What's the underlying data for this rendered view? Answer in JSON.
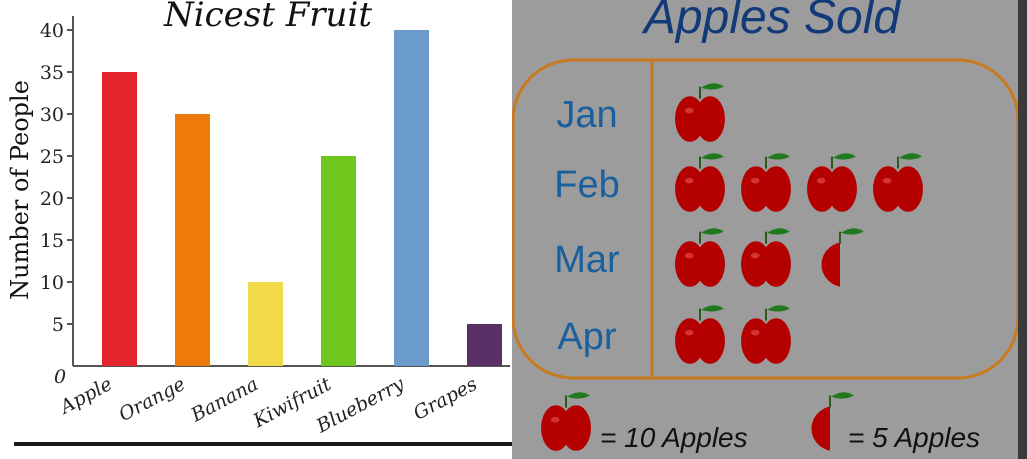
{
  "chart_data": [
    {
      "type": "bar",
      "title": "Nicest Fruit",
      "ylabel": "Number of People",
      "categories": [
        "Apple",
        "Orange",
        "Banana",
        "Kiwifruit",
        "Blueberry",
        "Grapes"
      ],
      "values": [
        35,
        30,
        10,
        25,
        40,
        5
      ],
      "colors": [
        "#e3242b",
        "#ed7a0a",
        "#f0da4a",
        "#6fc61c",
        "#6a9bca",
        "#5a2f66"
      ],
      "yticks": [
        "0",
        "5",
        "10",
        "15",
        "20",
        "25",
        "30",
        "35",
        "40"
      ],
      "ylim": [
        0,
        40
      ],
      "grid": false
    },
    {
      "type": "pictograph",
      "title": "Apples Sold",
      "categories": [
        "Jan",
        "Feb",
        "Mar",
        "Apr"
      ],
      "values": [
        10,
        40,
        25,
        20
      ],
      "icon": "apple-icon",
      "legend": [
        {
          "icon": "apple-icon",
          "label": "= 10 Apples",
          "value": 10
        },
        {
          "icon": "half-apple-icon",
          "label": "= 5 Apples",
          "value": 5
        }
      ],
      "colors": {
        "apple": "#b50000",
        "leaf": "#1f7a1f",
        "frame": "#c97a1e",
        "label": "#1a5f9e",
        "title": "#123a78"
      }
    }
  ]
}
